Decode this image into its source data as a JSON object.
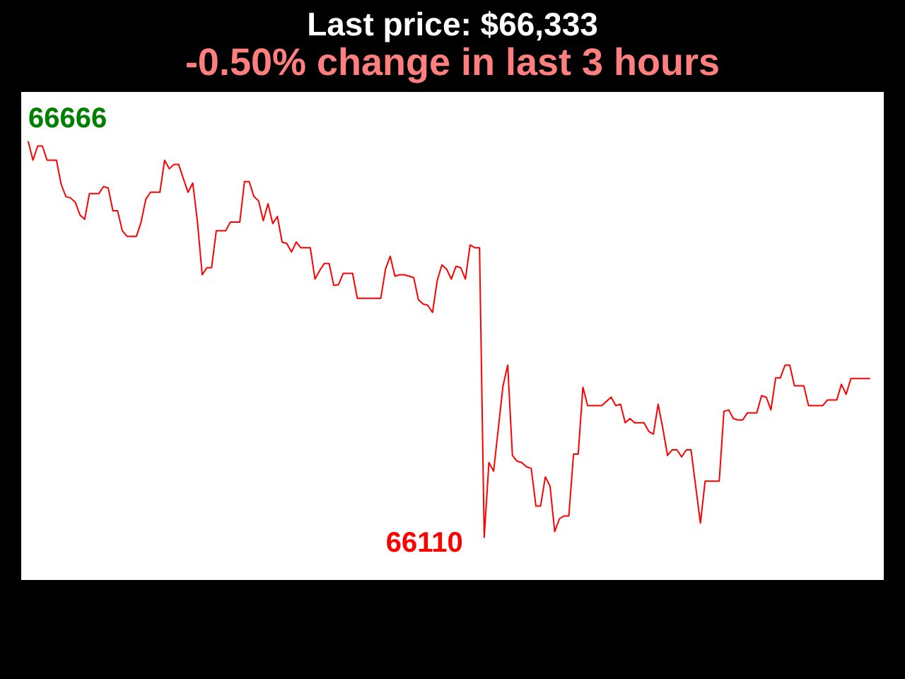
{
  "chart_data": {
    "type": "line",
    "title": "Last price: $66,333",
    "subtitle": "-0.50% change in last 3 hours",
    "categories": [
      null,
      null,
      null,
      null,
      null,
      null,
      null,
      null,
      null,
      null,
      null,
      null,
      null,
      null,
      null,
      null,
      null,
      null,
      null,
      null,
      null,
      null,
      null,
      null,
      null,
      null,
      null,
      null,
      null,
      null,
      null,
      null,
      null,
      null,
      null,
      null,
      null,
      null,
      null,
      null,
      null,
      null,
      null,
      null,
      null,
      null,
      null,
      null,
      null,
      null,
      null,
      null,
      null,
      null,
      null,
      null,
      null,
      null,
      null,
      null,
      null,
      null,
      null,
      null,
      null,
      null,
      null,
      null,
      null,
      null,
      null,
      null,
      null,
      null,
      null,
      null,
      null,
      null,
      null,
      null,
      null,
      null,
      null,
      null,
      null,
      null,
      null,
      null,
      null,
      null,
      null,
      null,
      null,
      null,
      null,
      null,
      null,
      null,
      null,
      null,
      null,
      null,
      null,
      null,
      null,
      null,
      null,
      null,
      null,
      null,
      null,
      null,
      null,
      null,
      null,
      null,
      null,
      null,
      null,
      null,
      null,
      null,
      null,
      null,
      null,
      null,
      null,
      null,
      null,
      null,
      null,
      null,
      null,
      null,
      null,
      null,
      null,
      null,
      null,
      null,
      null,
      null,
      null,
      null,
      null,
      null,
      null,
      null,
      null,
      null,
      null,
      null,
      null,
      null,
      null,
      null,
      null,
      null,
      null,
      null,
      null,
      null,
      null,
      null,
      null,
      null,
      null,
      null,
      null,
      null,
      null,
      null,
      null,
      null,
      null,
      null,
      null,
      null,
      null,
      null
    ],
    "color": "#ff0000",
    "values": [
      66666,
      66640,
      66660,
      66660,
      66640,
      66640,
      66640,
      66606,
      66589,
      66587,
      66581,
      66563,
      66557,
      66593,
      66593,
      66593,
      66603,
      66601,
      66569,
      66569,
      66541,
      66533,
      66533,
      66533,
      66553,
      66585,
      66595,
      66595,
      66595,
      66640,
      66628,
      66634,
      66634,
      66614,
      66595,
      66608,
      66553,
      66479,
      66489,
      66489,
      66541,
      66541,
      66541,
      66553,
      66553,
      66553,
      66610,
      66610,
      66589,
      66583,
      66555,
      66579,
      66551,
      66561,
      66525,
      66523,
      66511,
      66525,
      66517,
      66517,
      66517,
      66473,
      66485,
      66495,
      66495,
      66464,
      66465,
      66481,
      66481,
      66481,
      66446,
      66446,
      66446,
      66446,
      66446,
      66446,
      66487,
      66505,
      66477,
      66479,
      66479,
      66477,
      66475,
      66444,
      66438,
      66436,
      66426,
      66471,
      66493,
      66487,
      66473,
      66491,
      66489,
      66473,
      66521,
      66517,
      66517,
      66110,
      66215,
      66203,
      66263,
      66323,
      66352,
      66225,
      66217,
      66215,
      66209,
      66207,
      66154,
      66154,
      66195,
      66182,
      66118,
      66136,
      66140,
      66140,
      66227,
      66227,
      66321,
      66295,
      66295,
      66295,
      66295,
      66301,
      66307,
      66295,
      66297,
      66271,
      66277,
      66271,
      66271,
      66271,
      66259,
      66255,
      66297,
      66263,
      66225,
      66233,
      66233,
      66223,
      66233,
      66233,
      66181,
      66130,
      66189,
      66189,
      66189,
      66189,
      66287,
      66289,
      66277,
      66275,
      66275,
      66285,
      66285,
      66285,
      66309,
      66307,
      66289,
      66334,
      66334,
      66352,
      66352,
      66323,
      66323,
      66323,
      66295,
      66295,
      66295,
      66295,
      66303,
      66303,
      66303,
      66325,
      66311,
      66333,
      66333,
      66333,
      66333,
      66333
    ],
    "value_labels": [
      "66666",
      null,
      null,
      null,
      null,
      null,
      null,
      null,
      null,
      null,
      null,
      null,
      null,
      null,
      null,
      null,
      null,
      null,
      null,
      null,
      null,
      null,
      null,
      null,
      null,
      null,
      null,
      null,
      null,
      null,
      null,
      null,
      null,
      null,
      null,
      null,
      null,
      null,
      null,
      null,
      null,
      null,
      null,
      null,
      null,
      null,
      null,
      null,
      null,
      null,
      null,
      null,
      null,
      null,
      null,
      null,
      null,
      null,
      null,
      null,
      null,
      null,
      null,
      null,
      null,
      null,
      null,
      null,
      null,
      null,
      null,
      null,
      null,
      null,
      null,
      null,
      null,
      null,
      null,
      null,
      null,
      null,
      null,
      null,
      null,
      null,
      null,
      null,
      null,
      null,
      null,
      null,
      null,
      null,
      null,
      null,
      null,
      "66110",
      null,
      null,
      null,
      null,
      null,
      null,
      null,
      null,
      null,
      null,
      null,
      null,
      null,
      null,
      null,
      null,
      null,
      null,
      null,
      null,
      null,
      null,
      null,
      null,
      null,
      null,
      null,
      null,
      null,
      null,
      null,
      null,
      null,
      null,
      null,
      null,
      null,
      null,
      null,
      null,
      null,
      null,
      null,
      null,
      null,
      null,
      null,
      null,
      null,
      null,
      null,
      null,
      null,
      null,
      null,
      null,
      null,
      null,
      null,
      null,
      null,
      null,
      null,
      null,
      null,
      null,
      null,
      null,
      null,
      null,
      null,
      null,
      null,
      null,
      null,
      null,
      null,
      null,
      null,
      null,
      null,
      null
    ],
    "ylim": [
      66050,
      66736
    ]
  }
}
